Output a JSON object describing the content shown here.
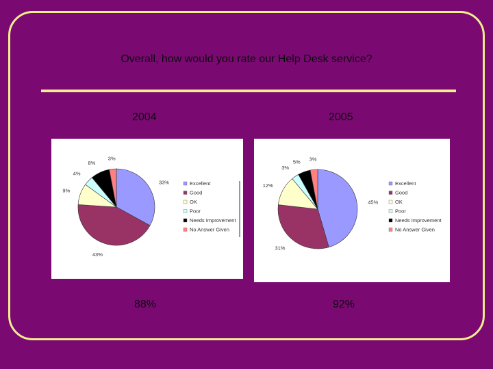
{
  "slide": {
    "question": "Overall, how would you rate our Help Desk service?",
    "colors": {
      "background": "#7a0a72",
      "accent": "#f3ee8c"
    }
  },
  "chart_data": [
    {
      "type": "pie",
      "title": "2004",
      "summary": "88%",
      "legend_position": "right",
      "categories": [
        "Excellent",
        "Good",
        "OK",
        "Poor",
        "Needs Improvement",
        "No Answer Given"
      ],
      "values": [
        33,
        43,
        9,
        4,
        8,
        3
      ],
      "labels": [
        "33%",
        "43%",
        "9%",
        "4%",
        "8%",
        "3%"
      ],
      "colors": [
        "#9999ff",
        "#993366",
        "#ffffcc",
        "#ccffff",
        "#000000",
        "#ff8080"
      ]
    },
    {
      "type": "pie",
      "title": "2005",
      "summary": "92%",
      "legend_position": "right",
      "categories": [
        "Excellent",
        "Good",
        "OK",
        "Poor",
        "Needs Improvement",
        "No Answer Given"
      ],
      "values": [
        45,
        31,
        12,
        3,
        5,
        3
      ],
      "labels": [
        "45%",
        "31%",
        "12%",
        "3%",
        "5%",
        "3%"
      ],
      "colors": [
        "#9999ff",
        "#993366",
        "#ffffcc",
        "#ccffff",
        "#000000",
        "#ff8080"
      ]
    }
  ]
}
